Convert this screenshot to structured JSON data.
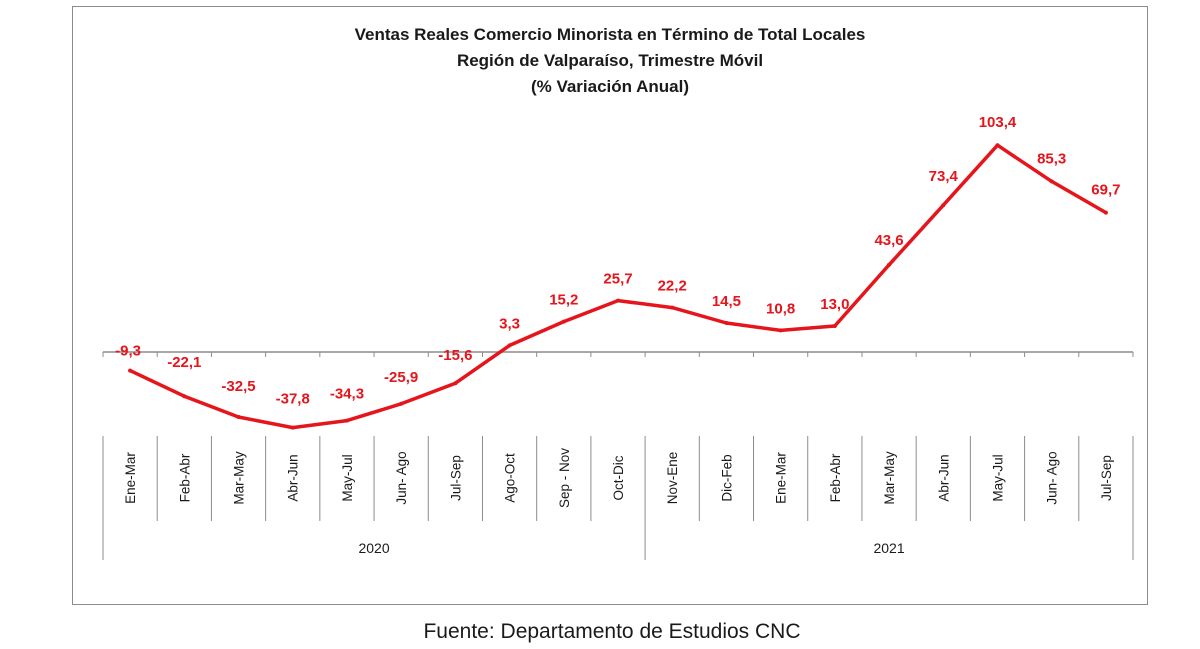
{
  "chart_data": {
    "type": "line",
    "title": "Ventas Reales Comercio Minorista  en Término de Total Locales",
    "subtitle": "Región de Valparaíso, Trimestre Móvil",
    "subtitle2": "(% Variación Anual)",
    "categories": [
      "Ene-Mar",
      "Feb-Abr",
      "Mar-May",
      "Abr-Jun",
      "May-Jul",
      "Jun- Ago",
      "Jul-Sep",
      "Ago-Oct",
      "Sep - Nov",
      "Oct-Dic",
      "Nov-Ene",
      "Dic-Feb",
      "Ene-Mar",
      "Feb-Abr",
      "Mar-May",
      "Abr-Jun",
      "May-Jul",
      "Jun- Ago",
      "Jul-Sep"
    ],
    "groups": [
      {
        "label": "2020",
        "start": 0,
        "end": 9
      },
      {
        "label": "2021",
        "start": 10,
        "end": 18
      }
    ],
    "series": [
      {
        "values": [
          -9.3,
          -22.1,
          -32.5,
          -37.8,
          -34.3,
          -25.9,
          -15.6,
          3.3,
          15.2,
          25.7,
          22.2,
          14.5,
          10.8,
          13.0,
          43.6,
          73.4,
          103.4,
          85.3,
          69.7
        ],
        "labels": [
          "-9,3",
          "-22,1",
          "-32,5",
          "-37,8",
          "-34,3",
          "-25,9",
          "-15,6",
          "3,3",
          "15,2",
          "25,7",
          "22,2",
          "14,5",
          "10,8",
          "13,0",
          "43,6",
          "73,4",
          "103,4",
          "85,3",
          "69,7"
        ]
      }
    ],
    "ylim": [
      -45,
      115
    ],
    "line_color": "#e6141b",
    "grid": false,
    "legend": "none"
  },
  "source": "Fuente: Departamento de Estudios CNC"
}
